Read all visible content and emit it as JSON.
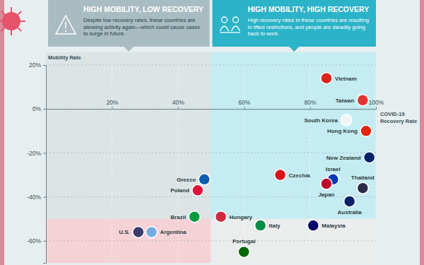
{
  "chart_data": {
    "type": "scatter",
    "annotations": [
      {
        "title": "HIGH MOBILITY, LOW RECOVERY",
        "text": "Despite low recovery rates, these countries are allowing activity again—which could cause cases to surge in future."
      },
      {
        "title": "HIGH MOBILITY, HIGH RECOVERY",
        "text": "High recovery rates in these countries are resulting in lifted restrictions, and people are steadily going back to work."
      }
    ],
    "x_label": "COVID-19 Recovery Rate",
    "y_label": "Mobility Rate",
    "labels": [
      "Vietnam",
      "Taiwan",
      "South Korea",
      "Hong Kong",
      "New Zealand",
      "Czechia",
      "Israel",
      "Japan",
      "Thailand",
      "Australia",
      "Greece",
      "Poland",
      "Brazil",
      "Hungary",
      "Italy",
      "Malaysia",
      "U.S.",
      "Argentina",
      "Portugal"
    ],
    "x": [
      85,
      96,
      91,
      97,
      98,
      71,
      87,
      85,
      96,
      92,
      48,
      46,
      45,
      53,
      65,
      81,
      28,
      32,
      60
    ],
    "values": [
      14,
      4,
      -5,
      -10,
      -22,
      -30,
      -32,
      -34,
      -36,
      -42,
      -32,
      -37,
      -49,
      -49,
      -53,
      -53,
      -56,
      -56,
      -65
    ],
    "colors": [
      "#da251d",
      "#e3342f",
      "#f4f4f4",
      "#de2910",
      "#012169",
      "#d7141a",
      "#0038b8",
      "#bc002d",
      "#2d2a4a",
      "#012169",
      "#0d5eaf",
      "#dc143c",
      "#009c3b",
      "#cd2a3e",
      "#008c45",
      "#010066",
      "#3c3b6e",
      "#74acdf",
      "#006600"
    ],
    "marker": "circle",
    "xlim": [
      0,
      100
    ],
    "ylim": [
      -70,
      20
    ],
    "xticks": [
      {
        "value": 20,
        "label": "20%"
      },
      {
        "value": 40,
        "label": "40%"
      },
      {
        "value": 60,
        "label": "60%"
      },
      {
        "value": 80,
        "label": "80%"
      },
      {
        "value": 100,
        "label": "100%"
      }
    ],
    "yticks": [
      {
        "value": 20,
        "label": "20%"
      },
      {
        "value": 0,
        "label": "0%"
      },
      {
        "value": -20,
        "label": "-20%"
      },
      {
        "value": -40,
        "label": "-40%"
      },
      {
        "value": -60,
        "label": "-60%"
      }
    ],
    "grid": true,
    "recovery_split": 50,
    "mobility_split": -50
  }
}
